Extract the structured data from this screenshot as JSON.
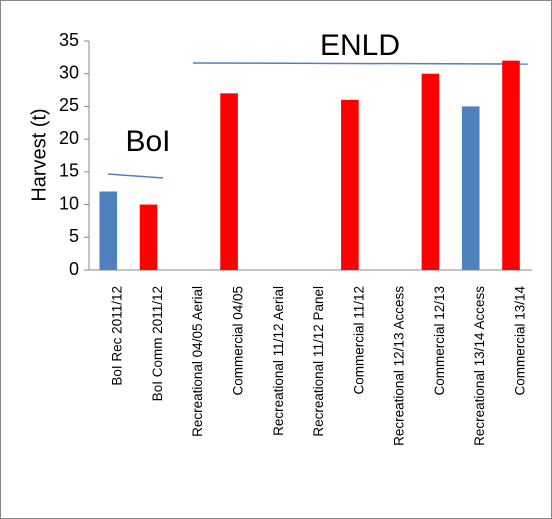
{
  "chart_data": {
    "type": "bar",
    "ylabel": "Harvest (t)",
    "categories": [
      "BoI Rec 2011/12",
      "BoI Comm 2011/12",
      "Recreational 04/05 Aerial",
      "Commercial 04/05",
      "Recreational 11/12 Aerial",
      "Recreational 11/12 Panel",
      "Commercial 11/12",
      "Recreational 12/13 Access",
      "Commercial 12/13",
      "Recreational 13/14 Access",
      "Commercial 13/14"
    ],
    "values": [
      12,
      10,
      null,
      27,
      null,
      null,
      26,
      null,
      30,
      25,
      32
    ],
    "colors": [
      "#4f81bd",
      "#ff0000",
      null,
      "#ff0000",
      null,
      null,
      "#ff0000",
      null,
      "#ff0000",
      "#4f81bd",
      "#ff0000"
    ],
    "ylim": [
      0,
      35
    ],
    "yticks": [
      0,
      5,
      10,
      15,
      20,
      25,
      30,
      35
    ],
    "grid": false,
    "annotations": [
      "BoI",
      "ENLD"
    ]
  }
}
